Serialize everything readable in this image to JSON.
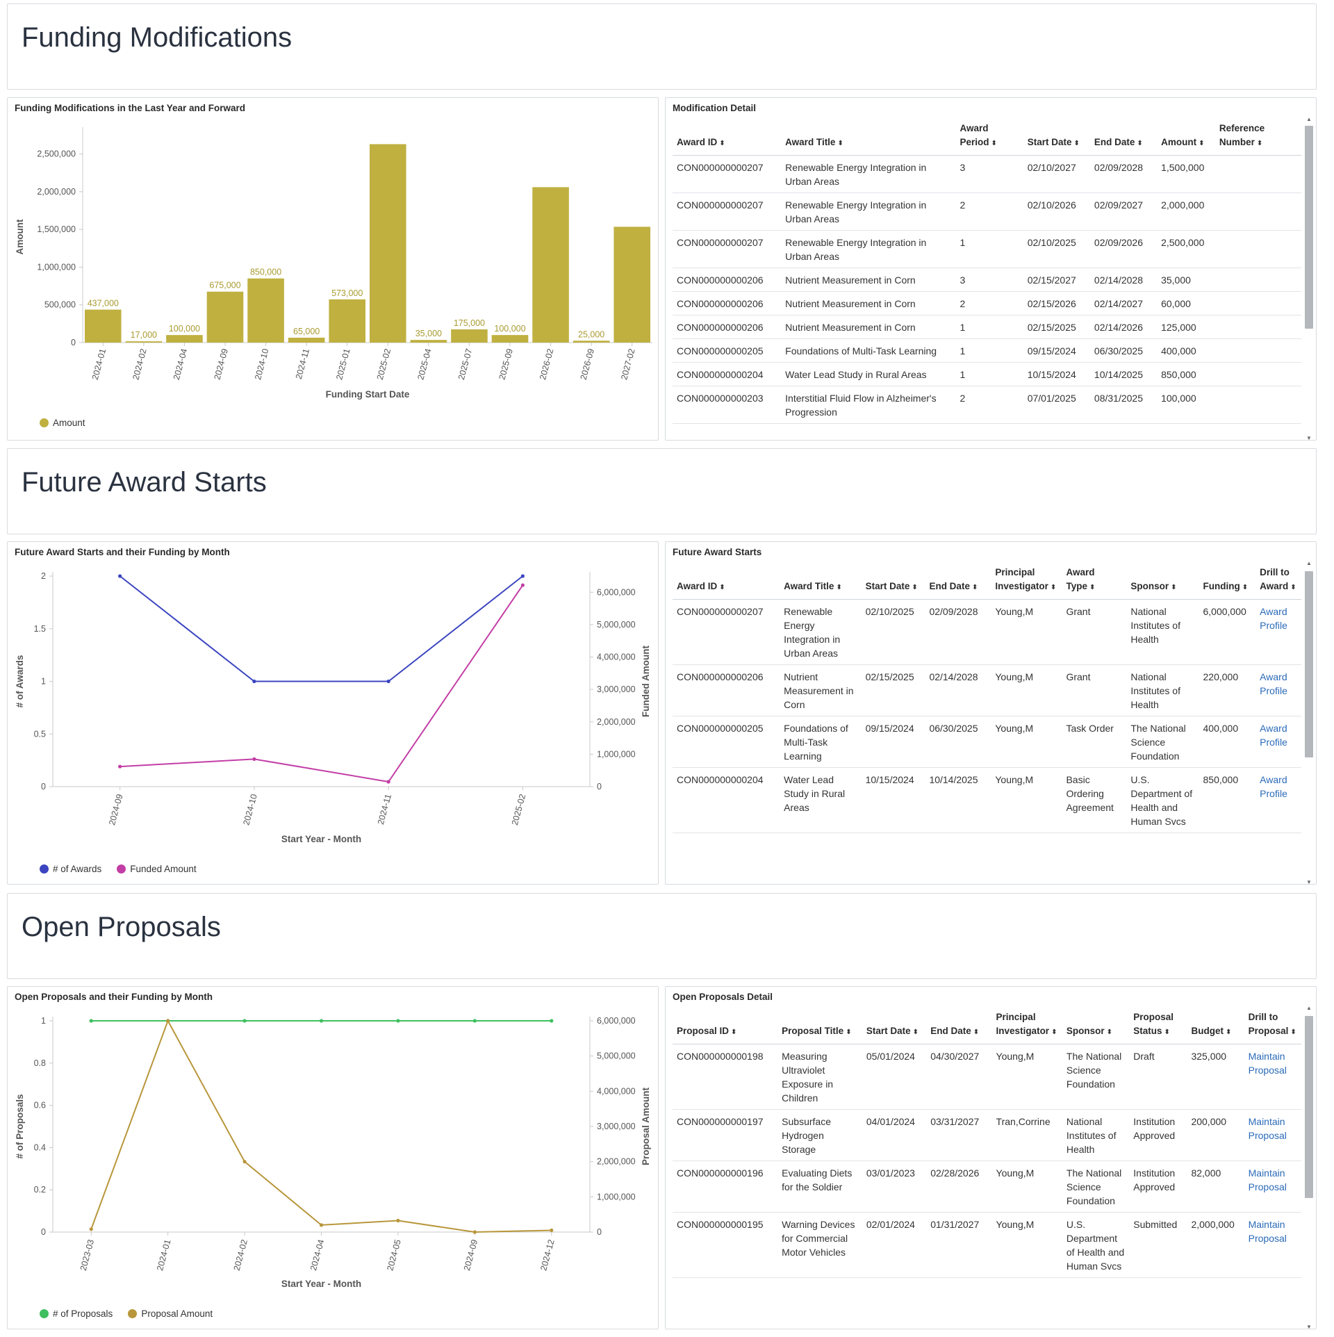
{
  "sections": {
    "funding_modifications": "Funding Modifications",
    "future_award_starts": "Future Award Starts",
    "open_proposals": "Open Proposals"
  },
  "funding_chart": {
    "panel_title": "Funding Modifications in the Last Year and Forward",
    "legend": "Amount",
    "color": "#bfb040"
  },
  "modification_detail": {
    "panel_title": "Modification Detail",
    "columns": [
      "Award ID",
      "Award Title",
      "Award Period",
      "Start Date",
      "End Date",
      "Amount",
      "Reference Number"
    ],
    "rows": [
      [
        "CON000000000207",
        "Renewable Energy Integration in Urban Areas",
        "3",
        "02/10/2027",
        "02/09/2028",
        "1,500,000",
        ""
      ],
      [
        "CON000000000207",
        "Renewable Energy Integration in Urban Areas",
        "2",
        "02/10/2026",
        "02/09/2027",
        "2,000,000",
        ""
      ],
      [
        "CON000000000207",
        "Renewable Energy Integration in Urban Areas",
        "1",
        "02/10/2025",
        "02/09/2026",
        "2,500,000",
        ""
      ],
      [
        "CON000000000206",
        "Nutrient Measurement in Corn",
        "3",
        "02/15/2027",
        "02/14/2028",
        "35,000",
        ""
      ],
      [
        "CON000000000206",
        "Nutrient Measurement in Corn",
        "2",
        "02/15/2026",
        "02/14/2027",
        "60,000",
        ""
      ],
      [
        "CON000000000206",
        "Nutrient Measurement in Corn",
        "1",
        "02/15/2025",
        "02/14/2026",
        "125,000",
        ""
      ],
      [
        "CON000000000205",
        "Foundations of Multi-Task Learning",
        "1",
        "09/15/2024",
        "06/30/2025",
        "400,000",
        ""
      ],
      [
        "CON000000000204",
        "Water Lead Study in Rural Areas",
        "1",
        "10/15/2024",
        "10/14/2025",
        "850,000",
        ""
      ],
      [
        "CON000000000203",
        "Interstitial Fluid Flow in Alzheimer's Progression",
        "2",
        "07/01/2025",
        "08/31/2025",
        "100,000",
        ""
      ]
    ]
  },
  "future_chart": {
    "panel_title": "Future Award Starts and their Funding by Month",
    "legend": [
      "# of Awards",
      "Funded Amount"
    ],
    "colors": [
      "#3b45c0",
      "#c23ea6"
    ]
  },
  "future_table": {
    "panel_title": "Future Award Starts",
    "columns": [
      "Award ID",
      "Award Title",
      "Start Date",
      "End Date",
      "Principal Investigator",
      "Award Type",
      "Sponsor",
      "Funding",
      "Drill to Award"
    ],
    "rows": [
      [
        "CON000000000207",
        "Renewable Energy Integration in Urban Areas",
        "02/10/2025",
        "02/09/2028",
        "Young,M",
        "Grant",
        "National Institutes of Health",
        "6,000,000",
        "Award Profile"
      ],
      [
        "CON000000000206",
        "Nutrient Measurement in Corn",
        "02/15/2025",
        "02/14/2028",
        "Young,M",
        "Grant",
        "National Institutes of Health",
        "220,000",
        "Award Profile"
      ],
      [
        "CON000000000205",
        "Foundations of Multi-Task Learning",
        "09/15/2024",
        "06/30/2025",
        "Young,M",
        "Task Order",
        "The National Science Foundation",
        "400,000",
        "Award Profile"
      ],
      [
        "CON000000000204",
        "Water Lead Study in Rural Areas",
        "10/15/2024",
        "10/14/2025",
        "Young,M",
        "Basic Ordering Agreement",
        "U.S. Department of Health and Human Svcs",
        "850,000",
        "Award Profile"
      ]
    ]
  },
  "proposals_chart": {
    "panel_title": "Open Proposals and their Funding by Month",
    "legend": [
      "# of Proposals",
      "Proposal Amount"
    ],
    "colors": [
      "#3fbf5f",
      "#b8963a"
    ]
  },
  "proposals_table": {
    "panel_title": "Open Proposals Detail",
    "columns": [
      "Proposal ID",
      "Proposal Title",
      "Start Date",
      "End Date",
      "Principal Investigator",
      "Sponsor",
      "Proposal Status",
      "Budget",
      "Drill to Proposal"
    ],
    "rows": [
      [
        "CON000000000198",
        "Measuring Ultraviolet Exposure in Children",
        "05/01/2024",
        "04/30/2027",
        "Young,M",
        "The National Science Foundation",
        "Draft",
        "325,000",
        "Maintain Proposal"
      ],
      [
        "CON000000000197",
        "Subsurface Hydrogen Storage",
        "04/01/2024",
        "03/31/2027",
        "Tran,Corrine",
        "National Institutes of Health",
        "Institution Approved",
        "200,000",
        "Maintain Proposal"
      ],
      [
        "CON000000000196",
        "Evaluating Diets for the Soldier",
        "03/01/2023",
        "02/28/2026",
        "Young,M",
        "The National Science Foundation",
        "Institution Approved",
        "82,000",
        "Maintain Proposal"
      ],
      [
        "CON000000000195",
        "Warning Devices for Commercial Motor Vehicles",
        "02/01/2024",
        "01/31/2027",
        "Young,M",
        "U.S. Department of Health and Human Svcs",
        "Submitted",
        "2,000,000",
        "Maintain Proposal"
      ]
    ]
  },
  "chart_data": [
    {
      "type": "bar",
      "title": "Funding Modifications in the Last Year and Forward",
      "xlabel": "Funding Start Date",
      "ylabel": "Amount",
      "categories": [
        "2024-01",
        "2024-02",
        "2024-04",
        "2024-09",
        "2024-10",
        "2024-11",
        "2025-01",
        "2025-02",
        "2025-04",
        "2025-07",
        "2025-09",
        "2026-02",
        "2026-09",
        "2027-02"
      ],
      "values": [
        437000,
        17000,
        100000,
        675000,
        850000,
        65000,
        573000,
        2630000,
        35000,
        175000,
        100000,
        2060000,
        25000,
        1535000
      ],
      "data_labels": [
        "437,000",
        "17,000",
        "100,000",
        "675,000",
        "850,000",
        "65,000",
        "573,000",
        "",
        "35,000",
        "175,000",
        "100,000",
        "",
        "25,000",
        ""
      ],
      "yticks": [
        "0",
        "500,000",
        "1,000,000",
        "1,500,000",
        "2,000,000",
        "2,500,000"
      ],
      "ylim": [
        0,
        2800000
      ],
      "legend": [
        "Amount"
      ]
    },
    {
      "type": "line",
      "title": "Future Award Starts and their Funding by Month",
      "xlabel": "Start Year - Month",
      "ylabel": "# of Awards",
      "y2label": "Funded Amount",
      "categories": [
        "2024-09",
        "2024-10",
        "2024-11",
        "2025-02"
      ],
      "series": [
        {
          "name": "# of Awards",
          "axis": "left",
          "values": [
            2,
            1,
            1,
            2
          ]
        },
        {
          "name": "Funded Amount",
          "axis": "right",
          "values": [
            620000,
            850000,
            150000,
            6220000
          ]
        }
      ],
      "ylim": [
        0,
        2
      ],
      "y2lim": [
        0,
        6500000
      ],
      "yticks": [
        "0",
        "0.5",
        "1",
        "1.5",
        "2"
      ],
      "y2ticks": [
        "0",
        "1,000,000",
        "2,000,000",
        "3,000,000",
        "4,000,000",
        "5,000,000",
        "6,000,000"
      ]
    },
    {
      "type": "line",
      "title": "Open Proposals and their Funding by Month",
      "xlabel": "Start Year - Month",
      "ylabel": "# of Proposals",
      "y2label": "Proposal Amount",
      "categories": [
        "2023-03",
        "2024-01",
        "2024-02",
        "2024-04",
        "2024-05",
        "2024-09",
        "2024-12"
      ],
      "series": [
        {
          "name": "# of Proposals",
          "axis": "left",
          "values": [
            1,
            1,
            1,
            1,
            1,
            1,
            1
          ]
        },
        {
          "name": "Proposal Amount",
          "axis": "right",
          "values": [
            82000,
            6000000,
            2000000,
            200000,
            325000,
            0,
            50000
          ]
        }
      ],
      "ylim": [
        0,
        1
      ],
      "y2lim": [
        0,
        6000000
      ],
      "yticks": [
        "0",
        "0.2",
        "0.4",
        "0.6",
        "0.8",
        "1"
      ],
      "y2ticks": [
        "0",
        "1,000,000",
        "2,000,000",
        "3,000,000",
        "4,000,000",
        "5,000,000",
        "6,000,000"
      ]
    }
  ]
}
